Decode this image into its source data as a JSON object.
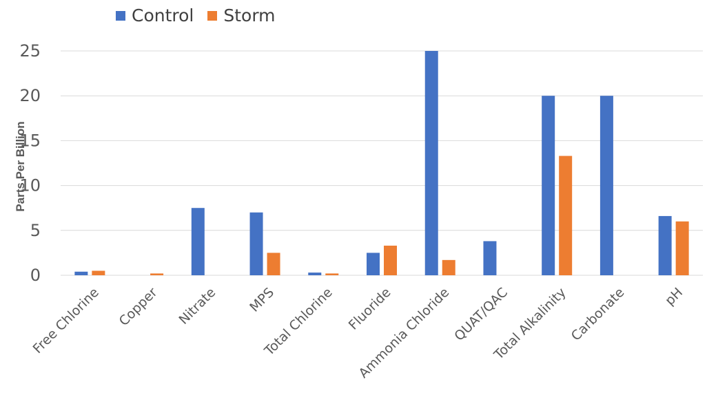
{
  "chart_data": {
    "type": "bar",
    "title": "",
    "xlabel": "",
    "ylabel": "Parts Per Billion",
    "ylim": [
      0,
      25
    ],
    "yticks": [
      0,
      5,
      10,
      15,
      20,
      25
    ],
    "grid": true,
    "legend_position": "top-left",
    "categories": [
      "Free Chlorine",
      "Copper",
      "Nitrate",
      "MPS",
      "Total Chlorine",
      "Fluoride",
      "Ammonia Chloride",
      "QUAT/QAC",
      "Total Alkalinity",
      "Carbonate",
      "pH"
    ],
    "series": [
      {
        "name": "Control",
        "color": "#4472C4",
        "values": [
          0.4,
          0,
          7.5,
          7,
          0.3,
          2.5,
          25,
          3.8,
          20,
          20,
          6.6
        ]
      },
      {
        "name": "Storm",
        "color": "#ED7D31",
        "values": [
          0.5,
          0.2,
          0,
          2.5,
          0.2,
          3.3,
          1.7,
          0,
          13.3,
          0,
          6.0
        ]
      }
    ]
  }
}
